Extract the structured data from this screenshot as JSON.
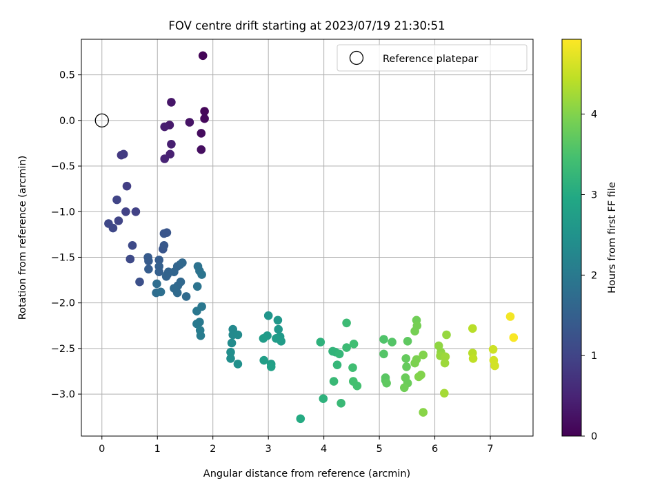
{
  "chart_data": {
    "type": "scatter",
    "title": "FOV centre drift starting at 2023/07/19 21:30:51",
    "xlabel": "Angular distance from reference (arcmin)",
    "ylabel": "Rotation from reference (arcmin)",
    "xlim": [
      -0.37,
      7.77
    ],
    "ylim": [
      -3.46,
      0.89
    ],
    "xticks": [
      0,
      1,
      2,
      3,
      4,
      5,
      6,
      7
    ],
    "yticks": [
      0.5,
      0.0,
      -0.5,
      -1.0,
      -1.5,
      -2.0,
      -2.5,
      -3.0
    ],
    "xtick_labels": [
      "0",
      "1",
      "2",
      "3",
      "4",
      "5",
      "6",
      "7"
    ],
    "ytick_labels": [
      "0.5",
      "0.0",
      "−0.5",
      "−1.0",
      "−1.5",
      "−2.0",
      "−2.5",
      "−3.0"
    ],
    "grid": true,
    "legend": {
      "position": "upper-right",
      "entries": [
        {
          "label": "Reference platepar",
          "marker": "open-circle"
        }
      ]
    },
    "reference_point": {
      "x": 0.0,
      "y": 0.0
    },
    "colorbar": {
      "label": "Hours from first FF file",
      "colormap": "viridis",
      "range": [
        0,
        4.93
      ],
      "ticks": [
        0,
        1,
        2,
        3,
        4
      ],
      "tick_labels": [
        "0",
        "1",
        "2",
        "3",
        "4"
      ]
    },
    "points": [
      {
        "x": 1.82,
        "y": 0.71,
        "h": 0.05
      },
      {
        "x": 1.85,
        "y": 0.1,
        "h": 0.08
      },
      {
        "x": 1.85,
        "y": 0.02,
        "h": 0.1
      },
      {
        "x": 1.79,
        "y": -0.14,
        "h": 0.15
      },
      {
        "x": 1.79,
        "y": -0.32,
        "h": 0.18
      },
      {
        "x": 1.58,
        "y": -0.02,
        "h": 0.25
      },
      {
        "x": 1.25,
        "y": 0.2,
        "h": 0.3
      },
      {
        "x": 1.22,
        "y": -0.05,
        "h": 0.35
      },
      {
        "x": 1.13,
        "y": -0.07,
        "h": 0.4
      },
      {
        "x": 1.25,
        "y": -0.26,
        "h": 0.42
      },
      {
        "x": 1.23,
        "y": -0.37,
        "h": 0.45
      },
      {
        "x": 1.13,
        "y": -0.42,
        "h": 0.5
      },
      {
        "x": 0.35,
        "y": -0.38,
        "h": 0.8
      },
      {
        "x": 0.39,
        "y": -0.37,
        "h": 0.85
      },
      {
        "x": 0.45,
        "y": -0.72,
        "h": 0.9
      },
      {
        "x": 0.43,
        "y": -1.0,
        "h": 0.95
      },
      {
        "x": 0.61,
        "y": -1.0,
        "h": 0.95
      },
      {
        "x": 0.27,
        "y": -0.87,
        "h": 1.0
      },
      {
        "x": 0.3,
        "y": -1.1,
        "h": 1.0
      },
      {
        "x": 0.12,
        "y": -1.13,
        "h": 1.05
      },
      {
        "x": 0.2,
        "y": -1.18,
        "h": 1.05
      },
      {
        "x": 0.55,
        "y": -1.37,
        "h": 1.1
      },
      {
        "x": 0.51,
        "y": -1.52,
        "h": 1.1
      },
      {
        "x": 0.68,
        "y": -1.77,
        "h": 1.2
      },
      {
        "x": 1.12,
        "y": -1.24,
        "h": 1.3
      },
      {
        "x": 1.17,
        "y": -1.23,
        "h": 1.3
      },
      {
        "x": 1.1,
        "y": -1.41,
        "h": 1.3
      },
      {
        "x": 1.12,
        "y": -1.37,
        "h": 1.35
      },
      {
        "x": 0.83,
        "y": -1.5,
        "h": 1.4
      },
      {
        "x": 0.84,
        "y": -1.54,
        "h": 1.4
      },
      {
        "x": 1.03,
        "y": -1.53,
        "h": 1.45
      },
      {
        "x": 0.84,
        "y": -1.63,
        "h": 1.45
      },
      {
        "x": 1.03,
        "y": -1.6,
        "h": 1.5
      },
      {
        "x": 1.03,
        "y": -1.66,
        "h": 1.5
      },
      {
        "x": 1.2,
        "y": -1.66,
        "h": 1.55
      },
      {
        "x": 1.18,
        "y": -1.69,
        "h": 1.55
      },
      {
        "x": 1.16,
        "y": -1.71,
        "h": 1.55
      },
      {
        "x": 1.3,
        "y": -1.66,
        "h": 1.6
      },
      {
        "x": 1.36,
        "y": -1.6,
        "h": 1.6
      },
      {
        "x": 1.41,
        "y": -1.58,
        "h": 1.6
      },
      {
        "x": 1.45,
        "y": -1.56,
        "h": 1.65
      },
      {
        "x": 1.42,
        "y": -1.77,
        "h": 1.65
      },
      {
        "x": 1.37,
        "y": -1.81,
        "h": 1.65
      },
      {
        "x": 1.3,
        "y": -1.84,
        "h": 1.7
      },
      {
        "x": 1.36,
        "y": -1.89,
        "h": 1.7
      },
      {
        "x": 1.52,
        "y": -1.93,
        "h": 1.7
      },
      {
        "x": 0.99,
        "y": -1.79,
        "h": 1.75
      },
      {
        "x": 0.98,
        "y": -1.89,
        "h": 1.75
      },
      {
        "x": 1.06,
        "y": -1.88,
        "h": 1.8
      },
      {
        "x": 1.73,
        "y": -1.6,
        "h": 1.85
      },
      {
        "x": 1.76,
        "y": -1.65,
        "h": 1.85
      },
      {
        "x": 1.8,
        "y": -1.69,
        "h": 1.9
      },
      {
        "x": 1.72,
        "y": -1.82,
        "h": 1.9
      },
      {
        "x": 1.8,
        "y": -2.04,
        "h": 1.95
      },
      {
        "x": 1.71,
        "y": -2.09,
        "h": 1.95
      },
      {
        "x": 1.76,
        "y": -2.21,
        "h": 2.0
      },
      {
        "x": 1.71,
        "y": -2.23,
        "h": 2.0
      },
      {
        "x": 1.77,
        "y": -2.3,
        "h": 2.05
      },
      {
        "x": 1.78,
        "y": -2.36,
        "h": 2.05
      },
      {
        "x": 2.36,
        "y": -2.29,
        "h": 2.3
      },
      {
        "x": 2.36,
        "y": -2.35,
        "h": 2.3
      },
      {
        "x": 2.45,
        "y": -2.35,
        "h": 2.35
      },
      {
        "x": 2.34,
        "y": -2.44,
        "h": 2.35
      },
      {
        "x": 2.32,
        "y": -2.54,
        "h": 2.4
      },
      {
        "x": 2.32,
        "y": -2.61,
        "h": 2.4
      },
      {
        "x": 2.45,
        "y": -2.67,
        "h": 2.45
      },
      {
        "x": 3.0,
        "y": -2.14,
        "h": 2.55
      },
      {
        "x": 3.17,
        "y": -2.19,
        "h": 2.6
      },
      {
        "x": 3.18,
        "y": -2.29,
        "h": 2.6
      },
      {
        "x": 2.98,
        "y": -2.36,
        "h": 2.65
      },
      {
        "x": 3.21,
        "y": -2.37,
        "h": 2.65
      },
      {
        "x": 2.91,
        "y": -2.39,
        "h": 2.7
      },
      {
        "x": 3.14,
        "y": -2.39,
        "h": 2.7
      },
      {
        "x": 3.23,
        "y": -2.42,
        "h": 2.7
      },
      {
        "x": 2.92,
        "y": -2.63,
        "h": 2.75
      },
      {
        "x": 3.05,
        "y": -2.67,
        "h": 2.75
      },
      {
        "x": 3.05,
        "y": -2.7,
        "h": 2.8
      },
      {
        "x": 3.58,
        "y": -3.27,
        "h": 3.0
      },
      {
        "x": 3.94,
        "y": -2.43,
        "h": 3.15
      },
      {
        "x": 3.99,
        "y": -3.05,
        "h": 3.15
      },
      {
        "x": 4.16,
        "y": -2.53,
        "h": 3.2
      },
      {
        "x": 4.21,
        "y": -2.54,
        "h": 3.2
      },
      {
        "x": 4.28,
        "y": -2.56,
        "h": 3.25
      },
      {
        "x": 4.24,
        "y": -2.68,
        "h": 3.25
      },
      {
        "x": 4.18,
        "y": -2.86,
        "h": 3.3
      },
      {
        "x": 4.31,
        "y": -3.1,
        "h": 3.3
      },
      {
        "x": 4.41,
        "y": -2.22,
        "h": 3.35
      },
      {
        "x": 4.41,
        "y": -2.49,
        "h": 3.35
      },
      {
        "x": 4.54,
        "y": -2.45,
        "h": 3.4
      },
      {
        "x": 4.52,
        "y": -2.71,
        "h": 3.4
      },
      {
        "x": 4.53,
        "y": -2.86,
        "h": 3.45
      },
      {
        "x": 4.6,
        "y": -2.91,
        "h": 3.45
      },
      {
        "x": 5.08,
        "y": -2.4,
        "h": 3.55
      },
      {
        "x": 5.23,
        "y": -2.43,
        "h": 3.6
      },
      {
        "x": 5.08,
        "y": -2.56,
        "h": 3.6
      },
      {
        "x": 5.11,
        "y": -2.82,
        "h": 3.65
      },
      {
        "x": 5.11,
        "y": -2.85,
        "h": 3.65
      },
      {
        "x": 5.13,
        "y": -2.88,
        "h": 3.7
      },
      {
        "x": 5.51,
        "y": -2.42,
        "h": 3.7
      },
      {
        "x": 5.48,
        "y": -2.61,
        "h": 3.75
      },
      {
        "x": 5.49,
        "y": -2.7,
        "h": 3.75
      },
      {
        "x": 5.47,
        "y": -2.82,
        "h": 3.8
      },
      {
        "x": 5.51,
        "y": -2.88,
        "h": 3.8
      },
      {
        "x": 5.45,
        "y": -2.93,
        "h": 3.85
      },
      {
        "x": 5.67,
        "y": -2.19,
        "h": 3.85
      },
      {
        "x": 5.68,
        "y": -2.25,
        "h": 3.9
      },
      {
        "x": 5.64,
        "y": -2.31,
        "h": 3.9
      },
      {
        "x": 5.67,
        "y": -2.62,
        "h": 3.95
      },
      {
        "x": 5.64,
        "y": -2.66,
        "h": 3.95
      },
      {
        "x": 5.71,
        "y": -2.81,
        "h": 4.0
      },
      {
        "x": 5.75,
        "y": -2.79,
        "h": 4.0
      },
      {
        "x": 5.79,
        "y": -2.57,
        "h": 4.0
      },
      {
        "x": 5.79,
        "y": -3.2,
        "h": 4.05
      },
      {
        "x": 6.07,
        "y": -2.47,
        "h": 4.1
      },
      {
        "x": 6.11,
        "y": -2.54,
        "h": 4.1
      },
      {
        "x": 6.1,
        "y": -2.58,
        "h": 4.15
      },
      {
        "x": 6.21,
        "y": -2.35,
        "h": 4.15
      },
      {
        "x": 6.19,
        "y": -2.59,
        "h": 4.2
      },
      {
        "x": 6.18,
        "y": -2.66,
        "h": 4.2
      },
      {
        "x": 6.17,
        "y": -2.99,
        "h": 4.25
      },
      {
        "x": 6.68,
        "y": -2.28,
        "h": 4.4
      },
      {
        "x": 6.68,
        "y": -2.55,
        "h": 4.4
      },
      {
        "x": 6.69,
        "y": -2.61,
        "h": 4.45
      },
      {
        "x": 7.05,
        "y": -2.51,
        "h": 4.55
      },
      {
        "x": 7.06,
        "y": -2.63,
        "h": 4.6
      },
      {
        "x": 7.08,
        "y": -2.69,
        "h": 4.6
      },
      {
        "x": 7.36,
        "y": -2.15,
        "h": 4.85
      },
      {
        "x": 7.42,
        "y": -2.38,
        "h": 4.9
      }
    ]
  }
}
